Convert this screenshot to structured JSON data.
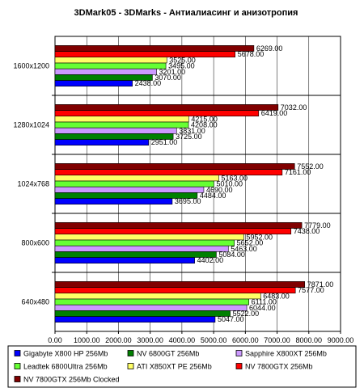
{
  "chart_data": {
    "type": "bar",
    "orientation": "horizontal",
    "title": "3DMark05 - 3DMarks - Антиалиасинг и анизотропия",
    "categories": [
      "1600x1200",
      "1280x1024",
      "1024x768",
      "800x600",
      "640x480"
    ],
    "xlim": [
      0,
      9000
    ],
    "xticks": [
      "0.00",
      "1000.00",
      "2000.00",
      "3000.00",
      "4000.00",
      "5000.00",
      "6000.00",
      "7000.00",
      "8000.00",
      "9000.00"
    ],
    "grid": "vertical",
    "legend_position": "bottom",
    "series": [
      {
        "name": "Gigabyte X800 HP 256Mb",
        "color": "#0000ff",
        "values": [
          2438,
          2951,
          3695,
          4402,
          5047
        ],
        "labels": [
          "2438.00",
          "2951.00",
          "3695.00",
          "4402.00",
          "5047.00"
        ]
      },
      {
        "name": "NV 6800GT 256Mb",
        "color": "#008000",
        "values": [
          3070,
          3725,
          4484,
          5084,
          5522
        ],
        "labels": [
          "3070.00",
          "3725.00",
          "4484.00",
          "5084.00",
          "5522.00"
        ]
      },
      {
        "name": "Sapphire X800XT 256Mb",
        "color": "#cc99ff",
        "values": [
          3201,
          3831,
          4690,
          5463,
          6044
        ],
        "labels": [
          "3201.00",
          "3831.00",
          "4690.00",
          "5463.00",
          "6044.00"
        ]
      },
      {
        "name": "Leadtek 6800Ultra 256Mb",
        "color": "#66ff33",
        "values": [
          3495,
          4208,
          5010,
          5652,
          6111
        ],
        "labels": [
          "3495.00",
          "4208.00",
          "5010.00",
          "5652.00",
          "6111.00"
        ]
      },
      {
        "name": "ATI X850XT PE 256Mb",
        "color": "#ffff66",
        "values": [
          3525,
          4215,
          5163,
          5952,
          6483
        ],
        "labels": [
          "3525.00",
          "4215.00",
          "5163.00",
          "5952.00",
          "6483.00"
        ]
      },
      {
        "name": "NV 7800GTX 256Mb",
        "color": "#ff0000",
        "values": [
          5678,
          6419,
          7161,
          7438,
          7577
        ],
        "labels": [
          "5678.00",
          "6419.00",
          "7161.00",
          "7438.00",
          "7577.00"
        ]
      },
      {
        "name": "NV 7800GTX 256Mb Clocked",
        "color": "#800000",
        "values": [
          6269,
          7032,
          7552,
          7779,
          7871
        ],
        "labels": [
          "6269.00",
          "7032.00",
          "7552.00",
          "7779.00",
          "7871.00"
        ]
      }
    ]
  }
}
